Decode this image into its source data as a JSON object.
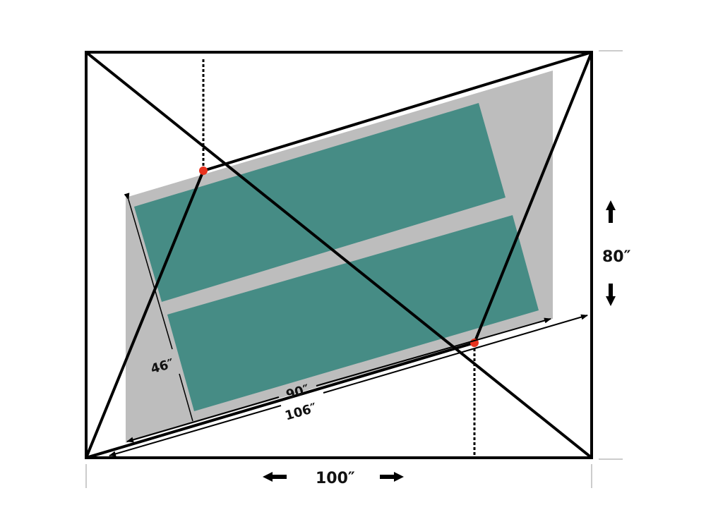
{
  "labels": {
    "width": "100″",
    "height": "80″",
    "panel_width": "46″",
    "panel_length": "90″",
    "diagonal_length": "106″"
  },
  "colors": {
    "panel": "#468c85",
    "shadow": "#bdbdbd",
    "frame": "#000000",
    "marker": "#e8331f",
    "guide": "#cccccc"
  }
}
